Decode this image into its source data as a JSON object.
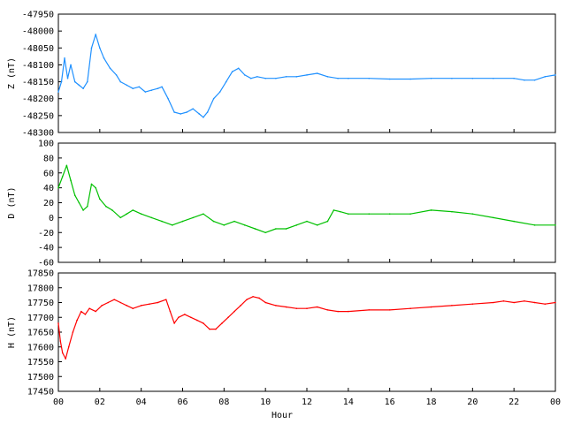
{
  "chart_data": [
    {
      "type": "line",
      "ylabel": "Z (nT)",
      "ylim": [
        -48300,
        -47950
      ],
      "yticks": [
        -47950,
        -48000,
        -48050,
        -48100,
        -48150,
        -48200,
        -48250,
        -48300
      ],
      "color": "#1e90ff",
      "x": [
        0,
        0.15,
        0.3,
        0.45,
        0.6,
        0.8,
        1.0,
        1.2,
        1.4,
        1.6,
        1.8,
        2.0,
        2.2,
        2.5,
        2.8,
        3.0,
        3.3,
        3.6,
        3.9,
        4.2,
        4.5,
        4.8,
        5.0,
        5.3,
        5.6,
        5.9,
        6.2,
        6.5,
        6.8,
        7.0,
        7.2,
        7.5,
        7.8,
        8.1,
        8.4,
        8.7,
        9.0,
        9.3,
        9.6,
        10.0,
        10.5,
        11.0,
        11.5,
        12.0,
        12.5,
        13.0,
        13.5,
        14.0,
        15.0,
        16.0,
        17.0,
        18.0,
        19.0,
        20.0,
        21.0,
        22.0,
        22.5,
        23.0,
        23.5,
        24.0
      ],
      "y": [
        -48180,
        -48150,
        -48080,
        -48140,
        -48100,
        -48150,
        -48160,
        -48170,
        -48150,
        -48050,
        -48010,
        -48050,
        -48080,
        -48110,
        -48130,
        -48150,
        -48160,
        -48170,
        -48165,
        -48180,
        -48175,
        -48170,
        -48165,
        -48200,
        -48240,
        -48245,
        -48240,
        -48230,
        -48245,
        -48255,
        -48240,
        -48200,
        -48180,
        -48150,
        -48120,
        -48110,
        -48130,
        -48140,
        -48135,
        -48140,
        -48140,
        -48135,
        -48135,
        -48130,
        -48125,
        -48135,
        -48140,
        -48140,
        -48140,
        -48142,
        -48142,
        -48140,
        -48140,
        -48140,
        -48140,
        -48140,
        -48145,
        -48145,
        -48135,
        -48130
      ]
    },
    {
      "type": "line",
      "ylabel": "D (nT)",
      "ylim": [
        -60,
        100
      ],
      "yticks": [
        100,
        80,
        60,
        40,
        20,
        0,
        -20,
        -40,
        -60
      ],
      "color": "#00c000",
      "x": [
        0,
        0.2,
        0.4,
        0.6,
        0.8,
        1.0,
        1.2,
        1.4,
        1.6,
        1.8,
        2.0,
        2.3,
        2.6,
        3.0,
        3.3,
        3.6,
        4.0,
        4.5,
        5.0,
        5.5,
        6.0,
        6.5,
        7.0,
        7.5,
        8.0,
        8.5,
        9.0,
        9.5,
        10.0,
        10.5,
        11.0,
        11.5,
        12.0,
        12.5,
        13.0,
        13.3,
        13.6,
        14.0,
        15.0,
        16.0,
        17.0,
        18.0,
        19.0,
        20.0,
        21.0,
        22.0,
        23.0,
        24.0
      ],
      "y": [
        40,
        55,
        70,
        50,
        30,
        20,
        10,
        15,
        45,
        40,
        25,
        15,
        10,
        0,
        5,
        10,
        5,
        0,
        -5,
        -10,
        -5,
        0,
        5,
        -5,
        -10,
        -5,
        -10,
        -15,
        -20,
        -15,
        -15,
        -10,
        -5,
        -10,
        -5,
        10,
        8,
        5,
        5,
        5,
        5,
        10,
        8,
        5,
        0,
        -5,
        -10,
        -10
      ]
    },
    {
      "type": "line",
      "ylabel": "H (nT)",
      "xlabel": "Hour",
      "ylim": [
        17450,
        17850
      ],
      "yticks": [
        17850,
        17800,
        17750,
        17700,
        17650,
        17600,
        17550,
        17500,
        17450
      ],
      "color": "#ff0000",
      "x": [
        0,
        0.1,
        0.2,
        0.35,
        0.5,
        0.7,
        0.9,
        1.1,
        1.3,
        1.5,
        1.8,
        2.1,
        2.4,
        2.7,
        3.0,
        3.3,
        3.6,
        4.0,
        4.4,
        4.8,
        5.2,
        5.4,
        5.6,
        5.8,
        6.1,
        6.4,
        6.7,
        7.0,
        7.3,
        7.6,
        7.9,
        8.2,
        8.5,
        8.8,
        9.1,
        9.4,
        9.7,
        10.0,
        10.5,
        11.0,
        11.5,
        12.0,
        12.5,
        13.0,
        13.5,
        14.0,
        15.0,
        16.0,
        17.0,
        18.0,
        19.0,
        20.0,
        21.0,
        21.5,
        22.0,
        22.5,
        23.0,
        23.5,
        24.0
      ],
      "y": [
        17680,
        17620,
        17580,
        17560,
        17600,
        17650,
        17690,
        17720,
        17710,
        17730,
        17720,
        17740,
        17750,
        17760,
        17750,
        17740,
        17730,
        17740,
        17745,
        17750,
        17760,
        17720,
        17680,
        17700,
        17710,
        17700,
        17690,
        17680,
        17660,
        17660,
        17680,
        17700,
        17720,
        17740,
        17760,
        17770,
        17765,
        17750,
        17740,
        17735,
        17730,
        17730,
        17735,
        17725,
        17720,
        17720,
        17725,
        17725,
        17730,
        17735,
        17740,
        17745,
        17750,
        17755,
        17750,
        17755,
        17750,
        17745,
        17750
      ]
    }
  ],
  "x_axis": {
    "label": "Hour",
    "range": [
      0,
      24
    ],
    "tick_labels": [
      "00",
      "02",
      "04",
      "06",
      "08",
      "10",
      "12",
      "14",
      "16",
      "18",
      "20",
      "22",
      "00"
    ]
  }
}
